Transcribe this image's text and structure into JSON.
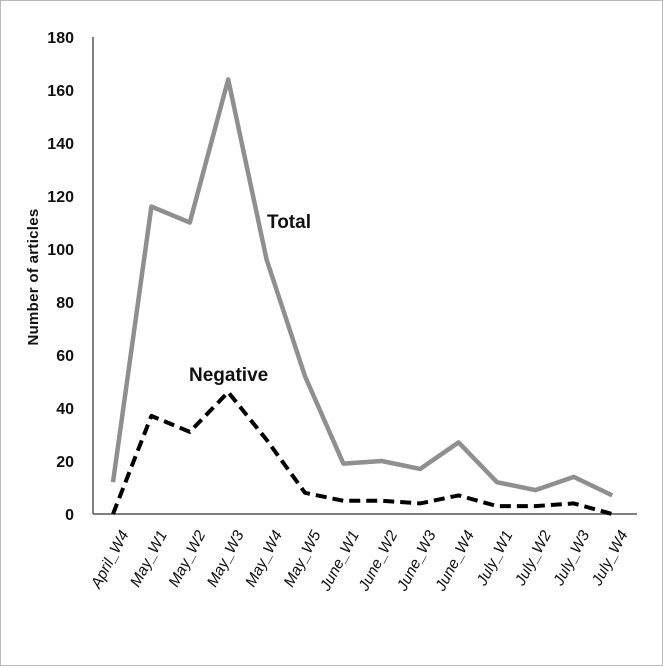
{
  "chart_data": {
    "type": "line",
    "title": "",
    "xlabel": "",
    "ylabel": "Number of articles",
    "ylim": [
      0,
      180
    ],
    "yticks": [
      "0",
      "20",
      "40",
      "60",
      "80",
      "100",
      "120",
      "140",
      "160",
      "180"
    ],
    "categories": [
      "April_W4",
      "May_W1",
      "May_W2",
      "May_W3",
      "May_W4",
      "May_W5",
      "June_W1",
      "June_W2",
      "June_W3",
      "June_W4",
      "July_W1",
      "July_W2",
      "July_W3",
      "July_W4"
    ],
    "grid": false,
    "series": [
      {
        "name": "Total",
        "color": "#8f8f8f",
        "style": "solid",
        "values": [
          12,
          116,
          110,
          164,
          96,
          52,
          19,
          20,
          17,
          27,
          12,
          9,
          14,
          7
        ]
      },
      {
        "name": "Negative",
        "color": "#000000",
        "style": "dashed",
        "values": [
          0,
          37,
          31,
          46,
          28,
          8,
          5,
          5,
          4,
          7,
          3,
          3,
          4,
          0
        ]
      }
    ]
  }
}
